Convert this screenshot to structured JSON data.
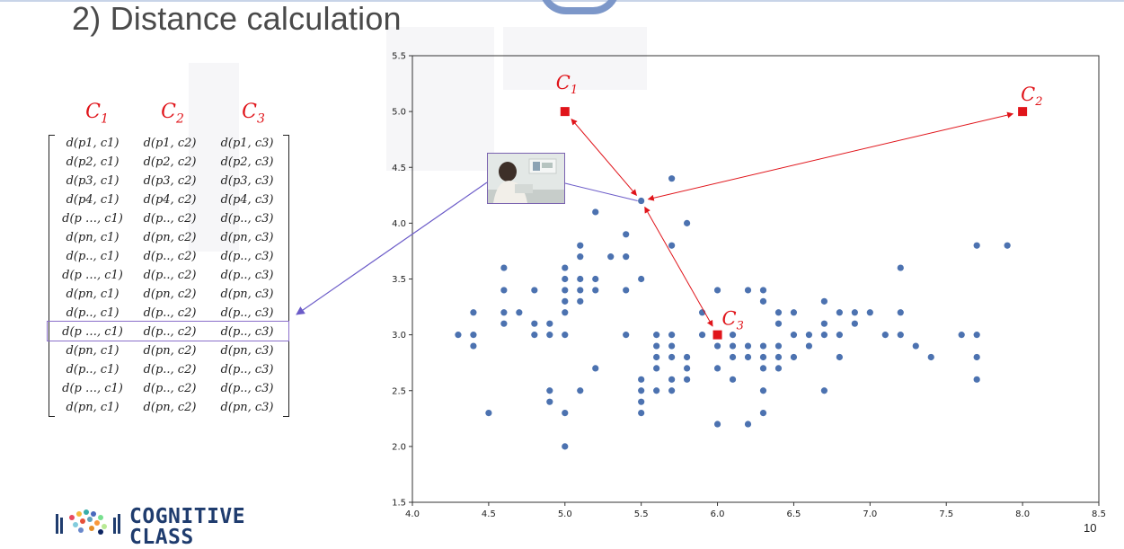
{
  "slide": {
    "title": "2) Distance calculation",
    "page_number": "10",
    "logo_text_line1": "COGNITIVE",
    "logo_text_line2": "CLASS"
  },
  "matrix": {
    "headers": [
      {
        "base": "C",
        "sub": "1"
      },
      {
        "base": "C",
        "sub": "2"
      },
      {
        "base": "C",
        "sub": "3"
      }
    ],
    "rows": [
      [
        "d(p1, c1)",
        "d(p1, c2)",
        "d(p1, c3)"
      ],
      [
        "d(p2, c1)",
        "d(p2, c2)",
        "d(p2, c3)"
      ],
      [
        "d(p3, c1)",
        "d(p3, c2)",
        "d(p3, c3)"
      ],
      [
        "d(p4, c1)",
        "d(p4, c2)",
        "d(p4, c3)"
      ],
      [
        "d(p …, c1)",
        "d(p.., c2)",
        "d(p.., c3)"
      ],
      [
        "d(pn, c1)",
        "d(pn, c2)",
        "d(pn, c3)"
      ],
      [
        "d(p.., c1)",
        "d(p.., c2)",
        "d(p.., c3)"
      ],
      [
        "d(p …, c1)",
        "d(p.., c2)",
        "d(p.., c3)"
      ],
      [
        "d(pn, c1)",
        "d(pn, c2)",
        "d(pn, c3)"
      ],
      [
        "d(p.., c1)",
        "d(p.., c2)",
        "d(p.., c3)"
      ],
      [
        "d(p …, c1)",
        "d(p.., c2)",
        "d(p.., c3)"
      ],
      [
        "d(pn, c1)",
        "d(pn, c2)",
        "d(pn, c3)"
      ],
      [
        "d(p.., c1)",
        "d(p.., c2)",
        "d(p.., c3)"
      ],
      [
        "d(p …, c1)",
        "d(p.., c2)",
        "d(p.., c3)"
      ],
      [
        "d(pn, c1)",
        "d(pn, c2)",
        "d(pn, c3)"
      ]
    ],
    "highlighted_row": 10
  },
  "colors": {
    "point": "#4c72b0",
    "centroid": "#e0141a",
    "arrow": "#e0141a",
    "link": "#6b5bc8"
  },
  "chart_data": {
    "type": "scatter",
    "xlim": [
      4.0,
      8.5
    ],
    "ylim": [
      1.5,
      5.5
    ],
    "xticks": [
      "4.0",
      "4.5",
      "5.0",
      "5.5",
      "6.0",
      "6.5",
      "7.0",
      "7.5",
      "8.0",
      "8.5"
    ],
    "yticks": [
      "1.5",
      "2.0",
      "2.5",
      "3.0",
      "3.5",
      "4.0",
      "4.5",
      "5.0",
      "5.5"
    ],
    "grid": false,
    "points": [
      [
        4.3,
        3.0
      ],
      [
        4.4,
        3.2
      ],
      [
        4.4,
        3.0
      ],
      [
        4.4,
        2.9
      ],
      [
        4.5,
        2.3
      ],
      [
        4.6,
        3.6
      ],
      [
        4.6,
        3.4
      ],
      [
        4.6,
        3.2
      ],
      [
        4.6,
        3.1
      ],
      [
        4.7,
        3.2
      ],
      [
        4.8,
        3.4
      ],
      [
        4.8,
        3.1
      ],
      [
        4.8,
        3.0
      ],
      [
        4.9,
        3.1
      ],
      [
        4.9,
        3.0
      ],
      [
        4.9,
        2.5
      ],
      [
        4.9,
        2.4
      ],
      [
        5.0,
        3.6
      ],
      [
        5.0,
        3.5
      ],
      [
        5.0,
        3.4
      ],
      [
        5.0,
        3.3
      ],
      [
        5.0,
        3.2
      ],
      [
        5.0,
        3.0
      ],
      [
        5.0,
        2.3
      ],
      [
        5.0,
        2.0
      ],
      [
        5.1,
        3.8
      ],
      [
        5.1,
        3.7
      ],
      [
        5.1,
        3.5
      ],
      [
        5.1,
        3.4
      ],
      [
        5.1,
        3.3
      ],
      [
        5.1,
        2.5
      ],
      [
        5.2,
        4.1
      ],
      [
        5.2,
        3.5
      ],
      [
        5.2,
        3.4
      ],
      [
        5.2,
        2.7
      ],
      [
        5.3,
        3.7
      ],
      [
        5.4,
        3.9
      ],
      [
        5.4,
        3.7
      ],
      [
        5.4,
        3.4
      ],
      [
        5.4,
        3.0
      ],
      [
        5.5,
        4.2
      ],
      [
        5.5,
        3.5
      ],
      [
        5.5,
        2.6
      ],
      [
        5.5,
        2.5
      ],
      [
        5.5,
        2.4
      ],
      [
        5.5,
        2.3
      ],
      [
        5.6,
        3.0
      ],
      [
        5.6,
        2.9
      ],
      [
        5.6,
        2.8
      ],
      [
        5.6,
        2.7
      ],
      [
        5.6,
        2.5
      ],
      [
        5.7,
        4.4
      ],
      [
        5.7,
        3.8
      ],
      [
        5.7,
        3.0
      ],
      [
        5.7,
        2.9
      ],
      [
        5.7,
        2.8
      ],
      [
        5.7,
        2.6
      ],
      [
        5.7,
        2.5
      ],
      [
        5.8,
        4.0
      ],
      [
        5.8,
        2.8
      ],
      [
        5.8,
        2.7
      ],
      [
        5.8,
        2.6
      ],
      [
        5.9,
        3.2
      ],
      [
        5.9,
        3.0
      ],
      [
        6.0,
        3.4
      ],
      [
        6.0,
        2.9
      ],
      [
        6.0,
        2.7
      ],
      [
        6.0,
        2.2
      ],
      [
        6.1,
        3.0
      ],
      [
        6.1,
        2.9
      ],
      [
        6.1,
        2.8
      ],
      [
        6.1,
        2.6
      ],
      [
        6.2,
        3.4
      ],
      [
        6.2,
        2.9
      ],
      [
        6.2,
        2.8
      ],
      [
        6.2,
        2.2
      ],
      [
        6.3,
        3.4
      ],
      [
        6.3,
        3.3
      ],
      [
        6.3,
        2.9
      ],
      [
        6.3,
        2.8
      ],
      [
        6.3,
        2.7
      ],
      [
        6.3,
        2.5
      ],
      [
        6.3,
        2.3
      ],
      [
        6.4,
        3.2
      ],
      [
        6.4,
        3.1
      ],
      [
        6.4,
        2.9
      ],
      [
        6.4,
        2.8
      ],
      [
        6.4,
        2.7
      ],
      [
        6.5,
        3.2
      ],
      [
        6.5,
        3.0
      ],
      [
        6.5,
        2.8
      ],
      [
        6.6,
        3.0
      ],
      [
        6.6,
        2.9
      ],
      [
        6.7,
        3.3
      ],
      [
        6.7,
        3.1
      ],
      [
        6.7,
        3.0
      ],
      [
        6.7,
        2.5
      ],
      [
        6.8,
        3.2
      ],
      [
        6.8,
        3.0
      ],
      [
        6.8,
        2.8
      ],
      [
        6.9,
        3.2
      ],
      [
        6.9,
        3.1
      ],
      [
        7.0,
        3.2
      ],
      [
        7.1,
        3.0
      ],
      [
        7.2,
        3.6
      ],
      [
        7.2,
        3.2
      ],
      [
        7.2,
        3.0
      ],
      [
        7.3,
        2.9
      ],
      [
        7.4,
        2.8
      ],
      [
        7.6,
        3.0
      ],
      [
        7.7,
        3.8
      ],
      [
        7.7,
        3.0
      ],
      [
        7.7,
        2.8
      ],
      [
        7.7,
        2.6
      ],
      [
        7.9,
        3.8
      ]
    ],
    "centroids": [
      {
        "label_base": "C",
        "label_sub": "1",
        "x": 5.0,
        "y": 5.0
      },
      {
        "label_base": "C",
        "label_sub": "2",
        "x": 8.0,
        "y": 5.0
      },
      {
        "label_base": "C",
        "label_sub": "3",
        "x": 6.0,
        "y": 3.0
      }
    ],
    "highlight_point": {
      "x": 5.5,
      "y": 4.2
    }
  }
}
